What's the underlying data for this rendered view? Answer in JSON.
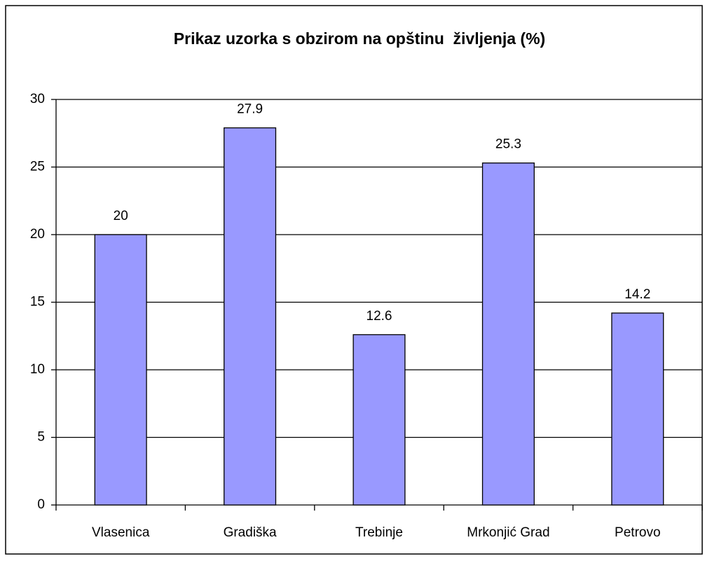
{
  "chart_data": {
    "type": "bar",
    "title": "Prikaz uzorka s obzirom na opštinu  življenja (%)",
    "categories": [
      "Vlasenica",
      "Gradiška",
      "Trebinje",
      "Mrkonjić Grad",
      "Petrovo"
    ],
    "values": [
      20,
      27.9,
      12.6,
      25.3,
      14.2
    ],
    "color": "#9999ff",
    "ylim": [
      0,
      30
    ],
    "yticks": [
      0,
      5,
      10,
      15,
      20,
      25,
      30
    ],
    "grid": true
  }
}
